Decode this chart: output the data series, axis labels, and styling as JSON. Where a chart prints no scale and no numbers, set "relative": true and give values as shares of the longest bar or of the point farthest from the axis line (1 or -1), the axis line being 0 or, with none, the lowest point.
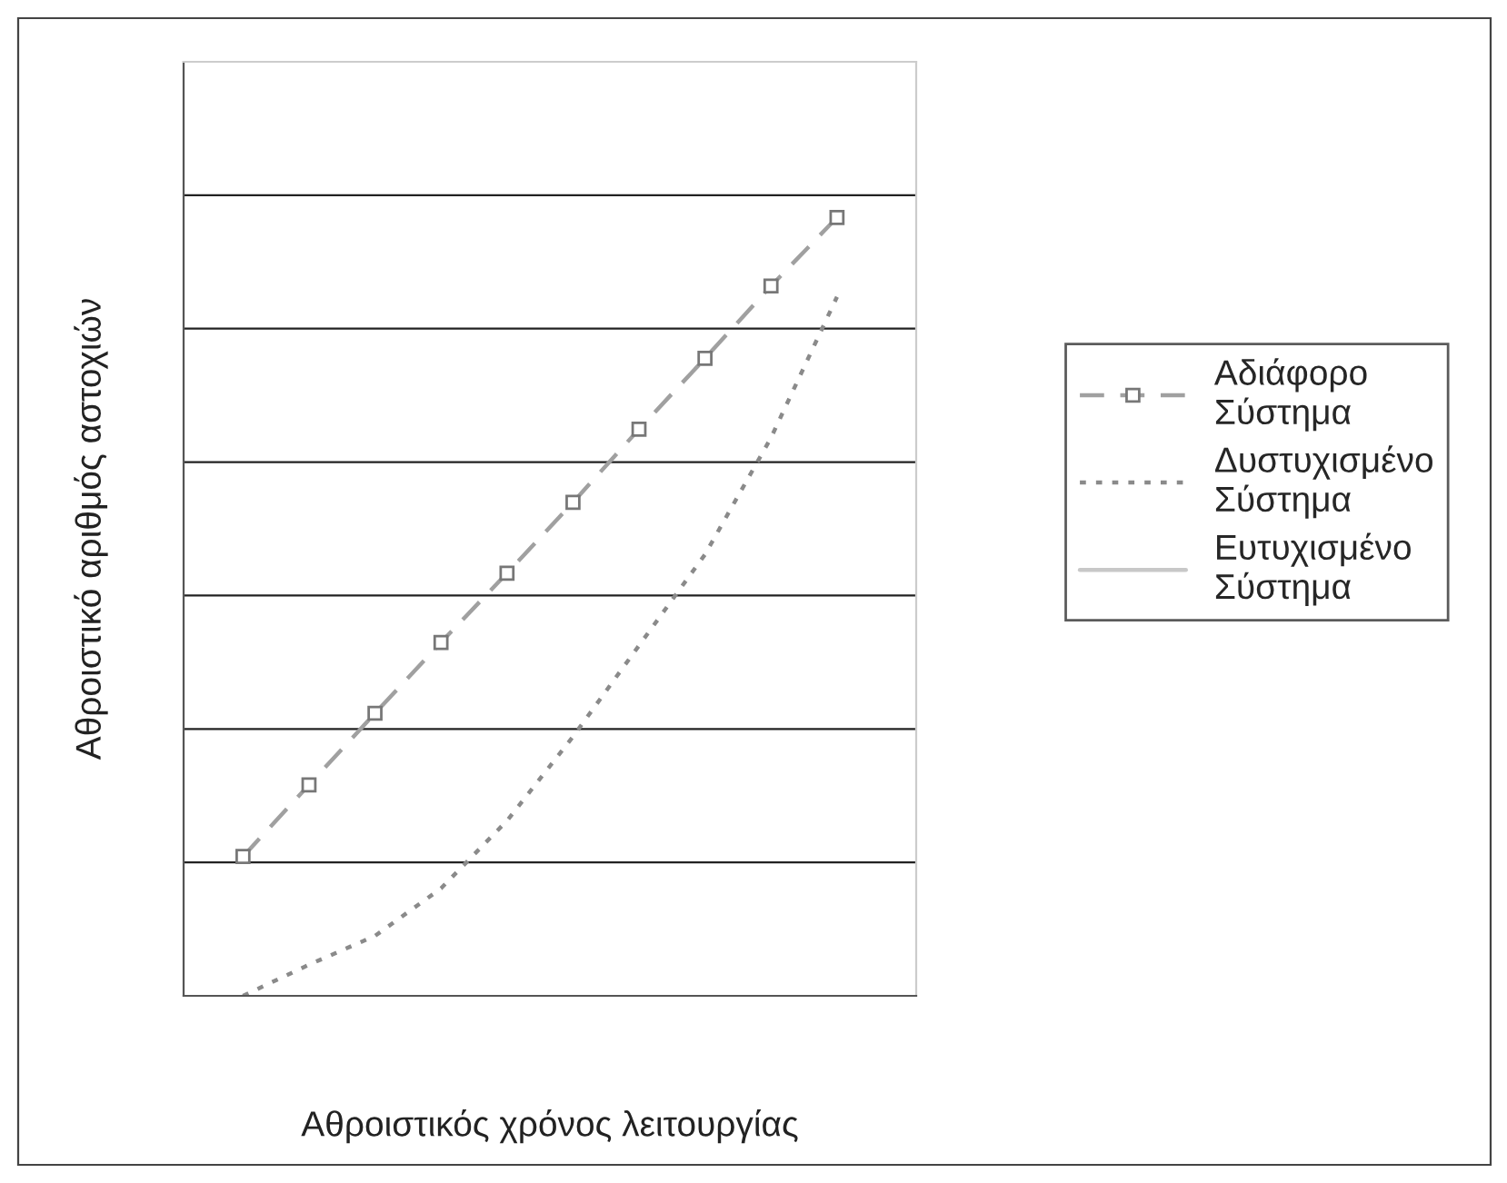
{
  "chart_data": {
    "type": "line",
    "relative": true,
    "xlabel": "Αθροιστικός χρόνος λειτουργίας",
    "ylabel": "Αθροιστικό αριθμός αστοχιών",
    "categories": [
      null,
      null,
      null,
      null,
      null,
      null,
      null,
      null,
      null,
      null
    ],
    "series": [
      {
        "name": "Αδιάφορο Σύστημα",
        "color": "#a0a0a0",
        "marker": "square",
        "line_style": "dashed",
        "values": [
          0.179,
          0.271,
          0.363,
          0.454,
          0.543,
          0.634,
          0.728,
          0.819,
          0.912,
          1
        ]
      },
      {
        "name": "Δυστυχισμένο Σύστημα",
        "color": "#8a8a8a",
        "marker": "none",
        "line_style": "dotted",
        "values": [
          0.0,
          0.04,
          0.077,
          0.138,
          0.225,
          0.333,
          0.45,
          0.567,
          0.717,
          0.898
        ]
      },
      {
        "name": "Ευτυχισμένο Σύστημα",
        "color": "#c8c8c8",
        "marker": "none",
        "line_style": "solid",
        "values": [
          null,
          null,
          null,
          null,
          null,
          null,
          null,
          null,
          null,
          null
        ]
      }
    ],
    "grid": "y",
    "legend": "right"
  }
}
